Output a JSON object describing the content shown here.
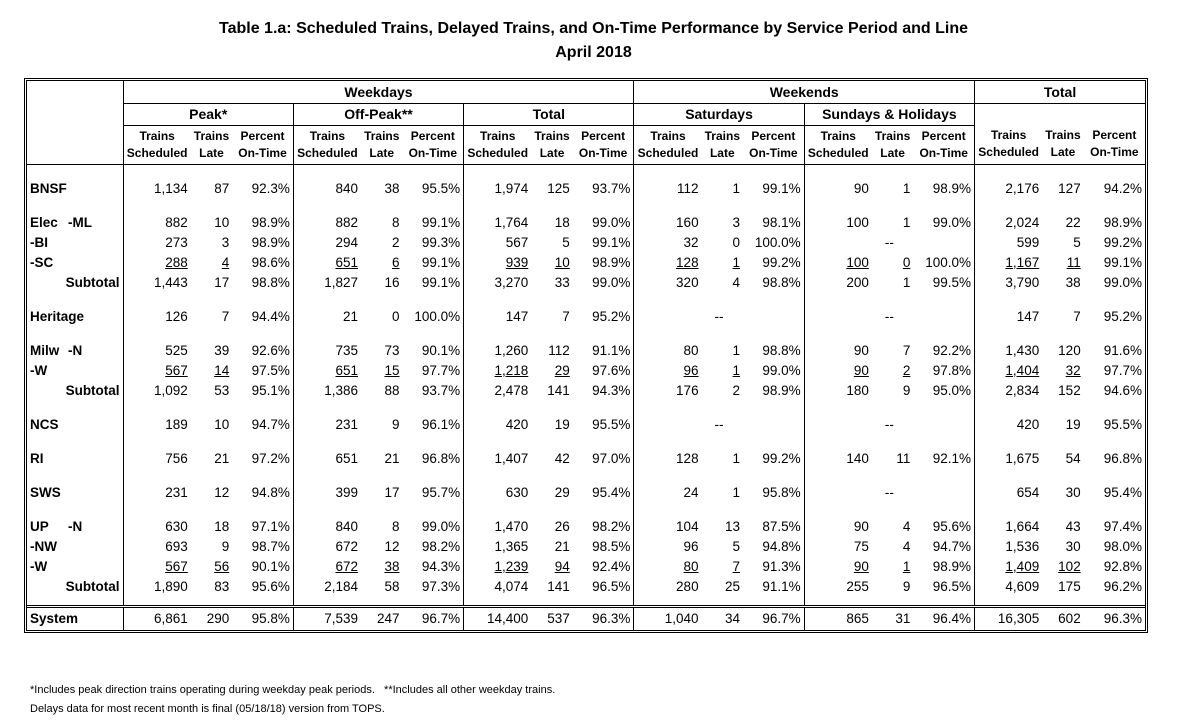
{
  "title_line1": "Table 1.a: Scheduled Trains, Delayed Trains, and On-Time Performance by Service Period and Line",
  "title_line2": "April 2018",
  "headers": {
    "weekdays": "Weekdays",
    "weekends": "Weekends",
    "total": "Total",
    "peak": "Peak*",
    "offpeak": "Off-Peak**",
    "wk_total": "Total",
    "saturdays": "Saturdays",
    "sundays": "Sundays & Holidays",
    "col_trains": "Trains",
    "col_scheduled": "Scheduled",
    "col_late": "Late",
    "col_percent": "Percent",
    "col_ontime": "On-Time"
  },
  "rows": {
    "bnsf": {
      "label": "BNSF",
      "v": [
        "1,134",
        "87",
        "92.3%",
        "840",
        "38",
        "95.5%",
        "1,974",
        "125",
        "93.7%",
        "112",
        "1",
        "99.1%",
        "90",
        "1",
        "98.9%",
        "2,176",
        "127",
        "94.2%"
      ]
    },
    "elec_ml": {
      "label": "Elec",
      "sub": "-ML",
      "v": [
        "882",
        "10",
        "98.9%",
        "882",
        "8",
        "99.1%",
        "1,764",
        "18",
        "99.0%",
        "160",
        "3",
        "98.1%",
        "100",
        "1",
        "99.0%",
        "2,024",
        "22",
        "98.9%"
      ]
    },
    "elec_bi": {
      "sub": "-BI",
      "v": [
        "273",
        "3",
        "98.9%",
        "294",
        "2",
        "99.3%",
        "567",
        "5",
        "99.1%",
        "32",
        "0",
        "100.0%",
        "--",
        "",
        "",
        "599",
        "5",
        "99.2%"
      ]
    },
    "elec_sc": {
      "sub": "-SC",
      "v": [
        "288",
        "4",
        "98.6%",
        "651",
        "6",
        "99.1%",
        "939",
        "10",
        "98.9%",
        "128",
        "1",
        "99.2%",
        "100",
        "0",
        "100.0%",
        "1,167",
        "11",
        "99.1%"
      ]
    },
    "elec_sub": {
      "label": "Subtotal",
      "v": [
        "1,443",
        "17",
        "98.8%",
        "1,827",
        "16",
        "99.1%",
        "3,270",
        "33",
        "99.0%",
        "320",
        "4",
        "98.8%",
        "200",
        "1",
        "99.5%",
        "3,790",
        "38",
        "99.0%"
      ]
    },
    "heritage": {
      "label": "Heritage",
      "v": [
        "126",
        "7",
        "94.4%",
        "21",
        "0",
        "100.0%",
        "147",
        "7",
        "95.2%",
        "--",
        "",
        "",
        "--",
        "",
        "",
        "147",
        "7",
        "95.2%"
      ]
    },
    "milw_n": {
      "label": "Milw",
      "sub": "-N",
      "v": [
        "525",
        "39",
        "92.6%",
        "735",
        "73",
        "90.1%",
        "1,260",
        "112",
        "91.1%",
        "80",
        "1",
        "98.8%",
        "90",
        "7",
        "92.2%",
        "1,430",
        "120",
        "91.6%"
      ]
    },
    "milw_w": {
      "sub": "-W",
      "v": [
        "567",
        "14",
        "97.5%",
        "651",
        "15",
        "97.7%",
        "1,218",
        "29",
        "97.6%",
        "96",
        "1",
        "99.0%",
        "90",
        "2",
        "97.8%",
        "1,404",
        "32",
        "97.7%"
      ]
    },
    "milw_sub": {
      "label": "Subtotal",
      "v": [
        "1,092",
        "53",
        "95.1%",
        "1,386",
        "88",
        "93.7%",
        "2,478",
        "141",
        "94.3%",
        "176",
        "2",
        "98.9%",
        "180",
        "9",
        "95.0%",
        "2,834",
        "152",
        "94.6%"
      ]
    },
    "ncs": {
      "label": "NCS",
      "v": [
        "189",
        "10",
        "94.7%",
        "231",
        "9",
        "96.1%",
        "420",
        "19",
        "95.5%",
        "--",
        "",
        "",
        "--",
        "",
        "",
        "420",
        "19",
        "95.5%"
      ]
    },
    "ri": {
      "label": "RI",
      "v": [
        "756",
        "21",
        "97.2%",
        "651",
        "21",
        "96.8%",
        "1,407",
        "42",
        "97.0%",
        "128",
        "1",
        "99.2%",
        "140",
        "11",
        "92.1%",
        "1,675",
        "54",
        "96.8%"
      ]
    },
    "sws": {
      "label": "SWS",
      "v": [
        "231",
        "12",
        "94.8%",
        "399",
        "17",
        "95.7%",
        "630",
        "29",
        "95.4%",
        "24",
        "1",
        "95.8%",
        "--",
        "",
        "",
        "654",
        "30",
        "95.4%"
      ]
    },
    "up_n": {
      "label": "UP",
      "sub": "-N",
      "v": [
        "630",
        "18",
        "97.1%",
        "840",
        "8",
        "99.0%",
        "1,470",
        "26",
        "98.2%",
        "104",
        "13",
        "87.5%",
        "90",
        "4",
        "95.6%",
        "1,664",
        "43",
        "97.4%"
      ]
    },
    "up_nw": {
      "sub": "-NW",
      "v": [
        "693",
        "9",
        "98.7%",
        "672",
        "12",
        "98.2%",
        "1,365",
        "21",
        "98.5%",
        "96",
        "5",
        "94.8%",
        "75",
        "4",
        "94.7%",
        "1,536",
        "30",
        "98.0%"
      ]
    },
    "up_w": {
      "sub": "-W",
      "v": [
        "567",
        "56",
        "90.1%",
        "672",
        "38",
        "94.3%",
        "1,239",
        "94",
        "92.4%",
        "80",
        "7",
        "91.3%",
        "90",
        "1",
        "98.9%",
        "1,409",
        "102",
        "92.8%"
      ]
    },
    "up_sub": {
      "label": "Subtotal",
      "v": [
        "1,890",
        "83",
        "95.6%",
        "2,184",
        "58",
        "97.3%",
        "4,074",
        "141",
        "96.5%",
        "280",
        "25",
        "91.1%",
        "255",
        "9",
        "96.5%",
        "4,609",
        "175",
        "96.2%"
      ]
    },
    "system": {
      "label": "System",
      "v": [
        "6,861",
        "290",
        "95.8%",
        "7,539",
        "247",
        "96.7%",
        "14,400",
        "537",
        "96.3%",
        "1,040",
        "34",
        "96.7%",
        "865",
        "31",
        "96.4%",
        "16,305",
        "602",
        "96.3%"
      ]
    }
  },
  "footnote1": "*Includes peak direction trains operating during weekday peak periods.   **Includes all other weekday trains.",
  "footnote2": "Delays data for most recent month is final (05/18/18) version from TOPS."
}
